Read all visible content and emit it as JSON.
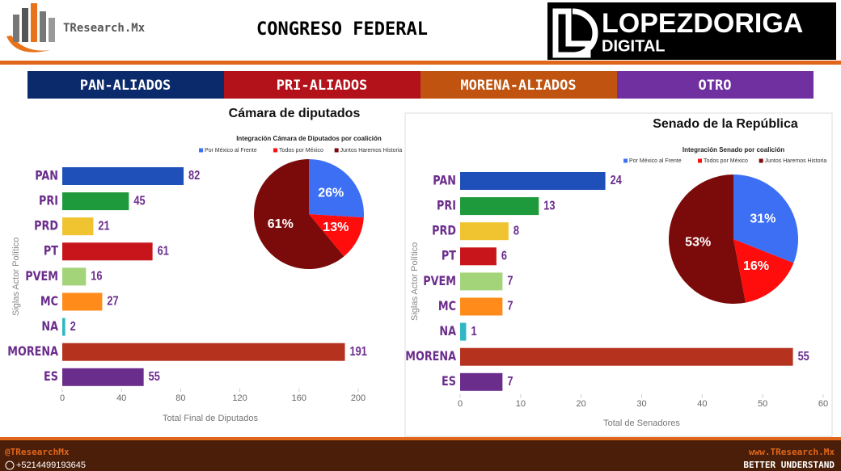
{
  "header": {
    "logo": "TResearch.Mx",
    "title": "CONGRESO FEDERAL",
    "brand": "LOPEZDORIGA",
    "brand_sub": "DIGITAL"
  },
  "coalitions": [
    "PAN-ALIADOS",
    "PRI-ALIADOS",
    "MORENA-ALIADOS",
    "OTRO"
  ],
  "footer": {
    "handle": "@TResearchMx",
    "phone": "+5214499193645",
    "site": "www.TResearch.Mx",
    "slogan": "BETTER UNDERSTAND"
  },
  "chart_data": [
    {
      "type": "hbar",
      "title": "Cámara de diputados",
      "ylabel": "Siglas Actor Político",
      "xlabel": "Total Final de Diputados",
      "categories": [
        "PAN",
        "PRI",
        "PRD",
        "PT",
        "PVEM",
        "MC",
        "NA",
        "MORENA",
        "ES"
      ],
      "values": [
        82,
        45,
        21,
        61,
        16,
        27,
        2,
        191,
        55
      ],
      "colors": [
        "#1f4fb8",
        "#1e9a3c",
        "#f0c330",
        "#c8151b",
        "#a3d47a",
        "#ff8c1a",
        "#2fb8c4",
        "#b5321f",
        "#6b2d8c"
      ],
      "xlim": [
        0,
        200
      ],
      "xticks": [
        0,
        40,
        80,
        120,
        160,
        200
      ],
      "grid": false
    },
    {
      "type": "pie",
      "title": "Integración Cámara de Diputados por coalición",
      "labels": [
        "Por México al Frente",
        "Todos por México",
        "Juntos Haremos Historia"
      ],
      "values": [
        26,
        13,
        61
      ],
      "value_labels": [
        "26%",
        "13%",
        "61%"
      ],
      "colors": [
        "#3d6ff5",
        "#ff0d0d",
        "#7b0a0a"
      ]
    },
    {
      "type": "hbar",
      "title": "Senado de la República",
      "ylabel": "Siglas Actor Político",
      "xlabel": "Total de Senadores",
      "categories": [
        "PAN",
        "PRI",
        "PRD",
        "PT",
        "PVEM",
        "MC",
        "NA",
        "MORENA",
        "ES"
      ],
      "values": [
        24,
        13,
        8,
        6,
        7,
        7,
        1,
        55,
        7
      ],
      "colors": [
        "#1f4fb8",
        "#1e9a3c",
        "#f0c330",
        "#c8151b",
        "#a3d47a",
        "#ff8c1a",
        "#2fb8c4",
        "#b5321f",
        "#6b2d8c"
      ],
      "xlim": [
        0,
        60
      ],
      "xticks": [
        0,
        10,
        20,
        30,
        40,
        50,
        60
      ],
      "grid": false
    },
    {
      "type": "pie",
      "title": "Integración Senado por coalición",
      "labels": [
        "Por México al Frente",
        "Todos por México",
        "Juntos Haremos Historia"
      ],
      "values": [
        31,
        16,
        53
      ],
      "value_labels": [
        "31%",
        "16%",
        "53%"
      ],
      "colors": [
        "#3d6ff5",
        "#ff0d0d",
        "#7b0a0a"
      ]
    }
  ]
}
